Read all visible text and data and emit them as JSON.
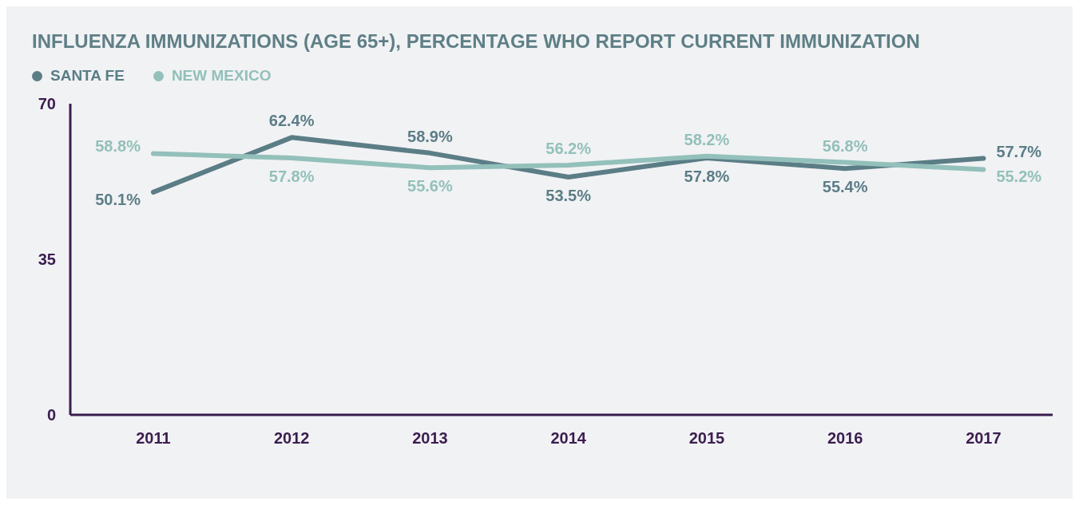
{
  "chart_data": {
    "type": "line",
    "title": "INFLUENZA IMMUNIZATIONS (AGE 65+), PERCENTAGE WHO REPORT CURRENT IMMUNIZATION",
    "categories": [
      "2011",
      "2012",
      "2013",
      "2014",
      "2015",
      "2016",
      "2017"
    ],
    "series": [
      {
        "name": "SANTA FE",
        "color": "#5b7d86",
        "values": [
          50.1,
          62.4,
          58.9,
          53.5,
          57.8,
          55.4,
          57.7
        ],
        "value_labels": [
          "50.1%",
          "62.4%",
          "58.9%",
          "53.5%",
          "57.8%",
          "55.4%",
          "57.7%"
        ]
      },
      {
        "name": "NEW MEXICO",
        "color": "#93c0ba",
        "values": [
          58.8,
          57.8,
          55.6,
          56.2,
          58.2,
          56.8,
          55.2
        ],
        "value_labels": [
          "58.8%",
          "57.8%",
          "55.6%",
          "56.2%",
          "58.2%",
          "56.8%",
          "55.2%"
        ]
      }
    ],
    "ylim": [
      0,
      70
    ],
    "yticks": [
      0,
      35,
      70
    ],
    "legend": "top left",
    "marker": "none",
    "line_style": "solid"
  }
}
